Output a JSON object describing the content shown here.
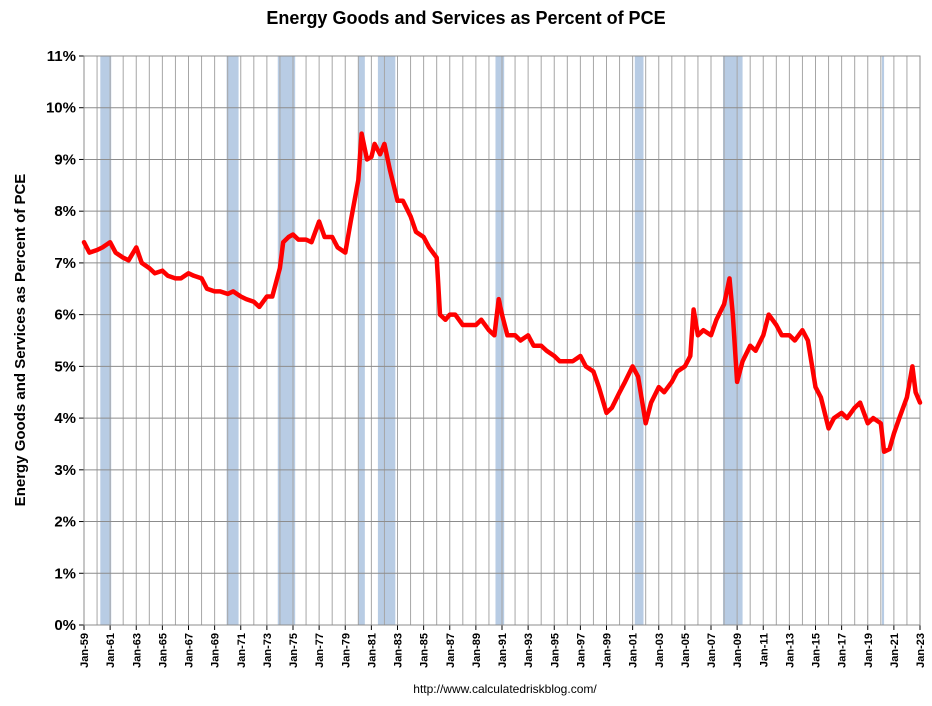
{
  "chart_data": {
    "type": "line",
    "title": "Energy Goods and Services as Percent of PCE",
    "xlabel": "",
    "ylabel": "Energy Goods and Services as Percent of PCE",
    "source": "http://www.calculatedriskblog.com/",
    "ylim": [
      0,
      11
    ],
    "y_ticks": [
      "0%",
      "1%",
      "2%",
      "3%",
      "4%",
      "5%",
      "6%",
      "7%",
      "8%",
      "9%",
      "10%",
      "11%"
    ],
    "x_range": [
      "1959-01",
      "2023-01"
    ],
    "x_ticks": [
      "Jan-59",
      "Jan-61",
      "Jan-63",
      "Jan-65",
      "Jan-67",
      "Jan-69",
      "Jan-71",
      "Jan-73",
      "Jan-75",
      "Jan-77",
      "Jan-79",
      "Jan-81",
      "Jan-83",
      "Jan-85",
      "Jan-87",
      "Jan-89",
      "Jan-91",
      "Jan-93",
      "Jan-95",
      "Jan-97",
      "Jan-99",
      "Jan-01",
      "Jan-03",
      "Jan-05",
      "Jan-07",
      "Jan-09",
      "Jan-11",
      "Jan-13",
      "Jan-15",
      "Jan-17",
      "Jan-19",
      "Jan-21",
      "Jan-23"
    ],
    "grid": true,
    "line_color": "#ff0000",
    "recession_color": "#b8cce4",
    "recessions": [
      [
        "1960-04",
        "1961-02"
      ],
      [
        "1969-12",
        "1970-11"
      ],
      [
        "1973-11",
        "1975-03"
      ],
      [
        "1980-01",
        "1980-07"
      ],
      [
        "1981-07",
        "1982-11"
      ],
      [
        "1990-07",
        "1991-03"
      ],
      [
        "2001-03",
        "2001-11"
      ],
      [
        "2007-12",
        "2009-06"
      ],
      [
        "2020-02",
        "2020-04"
      ]
    ],
    "series": [
      {
        "values": [
          [
            "1959-01",
            7.4
          ],
          [
            "1959-06",
            7.2
          ],
          [
            "1960-01",
            7.25
          ],
          [
            "1960-06",
            7.3
          ],
          [
            "1961-01",
            7.4
          ],
          [
            "1961-06",
            7.2
          ],
          [
            "1962-01",
            7.1
          ],
          [
            "1962-06",
            7.05
          ],
          [
            "1963-01",
            7.3
          ],
          [
            "1963-06",
            7.0
          ],
          [
            "1964-01",
            6.9
          ],
          [
            "1964-06",
            6.8
          ],
          [
            "1965-01",
            6.85
          ],
          [
            "1965-06",
            6.75
          ],
          [
            "1966-01",
            6.7
          ],
          [
            "1966-06",
            6.7
          ],
          [
            "1967-01",
            6.8
          ],
          [
            "1967-06",
            6.75
          ],
          [
            "1968-01",
            6.7
          ],
          [
            "1968-06",
            6.5
          ],
          [
            "1969-01",
            6.45
          ],
          [
            "1969-06",
            6.45
          ],
          [
            "1970-01",
            6.4
          ],
          [
            "1970-06",
            6.45
          ],
          [
            "1971-01",
            6.35
          ],
          [
            "1971-06",
            6.3
          ],
          [
            "1972-01",
            6.25
          ],
          [
            "1972-06",
            6.15
          ],
          [
            "1973-01",
            6.35
          ],
          [
            "1973-06",
            6.35
          ],
          [
            "1974-01",
            6.9
          ],
          [
            "1974-04",
            7.4
          ],
          [
            "1974-09",
            7.5
          ],
          [
            "1975-01",
            7.55
          ],
          [
            "1975-06",
            7.45
          ],
          [
            "1976-01",
            7.45
          ],
          [
            "1976-06",
            7.4
          ],
          [
            "1977-01",
            7.8
          ],
          [
            "1977-06",
            7.5
          ],
          [
            "1978-01",
            7.5
          ],
          [
            "1978-06",
            7.3
          ],
          [
            "1979-01",
            7.2
          ],
          [
            "1979-06",
            7.8
          ],
          [
            "1980-01",
            8.6
          ],
          [
            "1980-04",
            9.5
          ],
          [
            "1980-09",
            9.0
          ],
          [
            "1981-01",
            9.05
          ],
          [
            "1981-04",
            9.3
          ],
          [
            "1981-09",
            9.1
          ],
          [
            "1982-01",
            9.3
          ],
          [
            "1982-06",
            8.8
          ],
          [
            "1983-01",
            8.2
          ],
          [
            "1983-06",
            8.2
          ],
          [
            "1984-01",
            7.9
          ],
          [
            "1984-06",
            7.6
          ],
          [
            "1985-01",
            7.5
          ],
          [
            "1985-06",
            7.3
          ],
          [
            "1986-01",
            7.1
          ],
          [
            "1986-04",
            6.0
          ],
          [
            "1986-09",
            5.9
          ],
          [
            "1987-01",
            6.0
          ],
          [
            "1987-06",
            6.0
          ],
          [
            "1988-01",
            5.8
          ],
          [
            "1988-06",
            5.8
          ],
          [
            "1989-01",
            5.8
          ],
          [
            "1989-06",
            5.9
          ],
          [
            "1990-01",
            5.7
          ],
          [
            "1990-06",
            5.6
          ],
          [
            "1990-10",
            6.3
          ],
          [
            "1991-01",
            6.0
          ],
          [
            "1991-06",
            5.6
          ],
          [
            "1992-01",
            5.6
          ],
          [
            "1992-06",
            5.5
          ],
          [
            "1993-01",
            5.6
          ],
          [
            "1993-06",
            5.4
          ],
          [
            "1994-01",
            5.4
          ],
          [
            "1994-06",
            5.3
          ],
          [
            "1995-01",
            5.2
          ],
          [
            "1995-06",
            5.1
          ],
          [
            "1996-01",
            5.1
          ],
          [
            "1996-06",
            5.1
          ],
          [
            "1997-01",
            5.2
          ],
          [
            "1997-06",
            5.0
          ],
          [
            "1998-01",
            4.9
          ],
          [
            "1998-06",
            4.6
          ],
          [
            "1999-01",
            4.1
          ],
          [
            "1999-06",
            4.2
          ],
          [
            "2000-01",
            4.5
          ],
          [
            "2000-06",
            4.7
          ],
          [
            "2001-01",
            5.0
          ],
          [
            "2001-06",
            4.8
          ],
          [
            "2002-01",
            3.9
          ],
          [
            "2002-06",
            4.3
          ],
          [
            "2003-01",
            4.6
          ],
          [
            "2003-06",
            4.5
          ],
          [
            "2004-01",
            4.7
          ],
          [
            "2004-06",
            4.9
          ],
          [
            "2005-01",
            5.0
          ],
          [
            "2005-06",
            5.2
          ],
          [
            "2005-09",
            6.1
          ],
          [
            "2006-01",
            5.6
          ],
          [
            "2006-06",
            5.7
          ],
          [
            "2007-01",
            5.6
          ],
          [
            "2007-06",
            5.9
          ],
          [
            "2008-01",
            6.2
          ],
          [
            "2008-06",
            6.7
          ],
          [
            "2008-09",
            6.0
          ],
          [
            "2009-01",
            4.7
          ],
          [
            "2009-06",
            5.1
          ],
          [
            "2010-01",
            5.4
          ],
          [
            "2010-06",
            5.3
          ],
          [
            "2011-01",
            5.6
          ],
          [
            "2011-06",
            6.0
          ],
          [
            "2012-01",
            5.8
          ],
          [
            "2012-06",
            5.6
          ],
          [
            "2013-01",
            5.6
          ],
          [
            "2013-06",
            5.5
          ],
          [
            "2014-01",
            5.7
          ],
          [
            "2014-06",
            5.5
          ],
          [
            "2015-01",
            4.6
          ],
          [
            "2015-06",
            4.4
          ],
          [
            "2016-01",
            3.8
          ],
          [
            "2016-06",
            4.0
          ],
          [
            "2017-01",
            4.1
          ],
          [
            "2017-06",
            4.0
          ],
          [
            "2018-01",
            4.2
          ],
          [
            "2018-06",
            4.3
          ],
          [
            "2019-01",
            3.9
          ],
          [
            "2019-06",
            4.0
          ],
          [
            "2020-01",
            3.9
          ],
          [
            "2020-04",
            3.35
          ],
          [
            "2020-09",
            3.4
          ],
          [
            "2021-01",
            3.7
          ],
          [
            "2021-06",
            4.0
          ],
          [
            "2022-01",
            4.4
          ],
          [
            "2022-06",
            5.0
          ],
          [
            "2022-09",
            4.5
          ],
          [
            "2023-01",
            4.3
          ]
        ]
      }
    ]
  }
}
